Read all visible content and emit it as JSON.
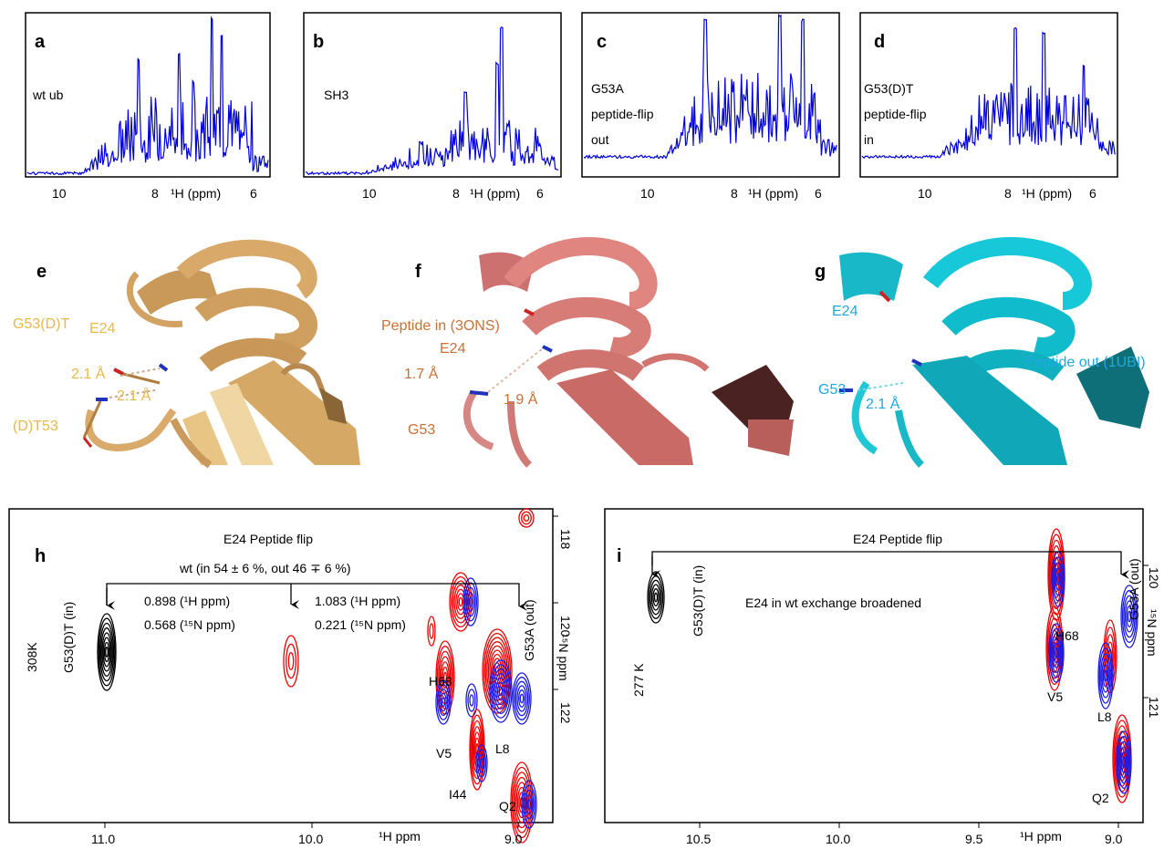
{
  "panels": {
    "a": {
      "letter": "a",
      "label": "wt ub",
      "ticks": [
        "10",
        "8",
        "6"
      ],
      "axis": "¹H (ppm)"
    },
    "b": {
      "letter": "b",
      "label": "SH3",
      "ticks": [
        "10",
        "8",
        "6"
      ],
      "axis": "¹H (ppm)"
    },
    "c": {
      "letter": "c",
      "label_lines": [
        "G53A",
        "peptide-flip",
        "out"
      ],
      "ticks": [
        "10",
        "8",
        "6"
      ],
      "axis": "¹H (ppm)"
    },
    "d": {
      "letter": "d",
      "label_lines": [
        "G53(D)T",
        "peptide-flip",
        "in"
      ],
      "ticks": [
        "10",
        "8",
        "6"
      ],
      "axis": "¹H (ppm)"
    },
    "e": {
      "letter": "e",
      "labels": {
        "mutant": "G53(D)T",
        "e24": "E24",
        "dist1": "2.1 Å",
        "dist2": "2.1 Å",
        "t53": "(D)T53"
      },
      "color": "#e8b94a"
    },
    "f": {
      "letter": "f",
      "labels": {
        "title": "Peptide in (3ONS)",
        "e24": "E24",
        "dist1": "1.7 Å",
        "dist2": "1.9 Å",
        "g53": "G53"
      },
      "color": "#c87137"
    },
    "g": {
      "letter": "g",
      "labels": {
        "e24": "E24",
        "title": "Peptide out (1UBI)",
        "g53": "G53",
        "dist": "2.1 Å"
      },
      "color": "#1fa8e0"
    },
    "h": {
      "letter": "h",
      "title": "E24 Peptide flip",
      "wt_label": "wt (in 54 ± 6 %, out 46 ∓ 6 %)",
      "left_shift": [
        "0.898 (¹H ppm)",
        "0.568 (¹⁵N ppm)"
      ],
      "right_shift": [
        "1.083 (¹H ppm)",
        "0.221 (¹⁵N ppm)"
      ],
      "g53dt": "G53(D)T (in)",
      "g53a": "G53A (out)",
      "temp": "308K",
      "peaks": [
        "H68",
        "V5",
        "L8",
        "I44",
        "Q2"
      ],
      "x_ticks": [
        "11.0",
        "10.0",
        "9.0"
      ],
      "xlabel": "¹H ppm",
      "y_ticks": [
        "118",
        "120",
        "122"
      ],
      "ylabel": "¹⁵N ppm"
    },
    "i": {
      "letter": "i",
      "title": "E24 Peptide flip",
      "note": "E24 in wt exchange broadened",
      "g53dt": "G53(D)T (in)",
      "g53a": "G53A (out)",
      "temp": "277 K",
      "peaks": [
        "H68",
        "V5",
        "L8",
        "Q2"
      ],
      "x_ticks": [
        "10.5",
        "10.0",
        "9.5",
        "9.0"
      ],
      "xlabel": "¹H ppm",
      "y_ticks": [
        "120",
        "121"
      ],
      "ylabel": "¹⁵N ppm"
    }
  },
  "colors": {
    "spectrum": "#0000dd",
    "wt": "#ee0000",
    "out": "#1a1ae6",
    "in": "#000000"
  }
}
